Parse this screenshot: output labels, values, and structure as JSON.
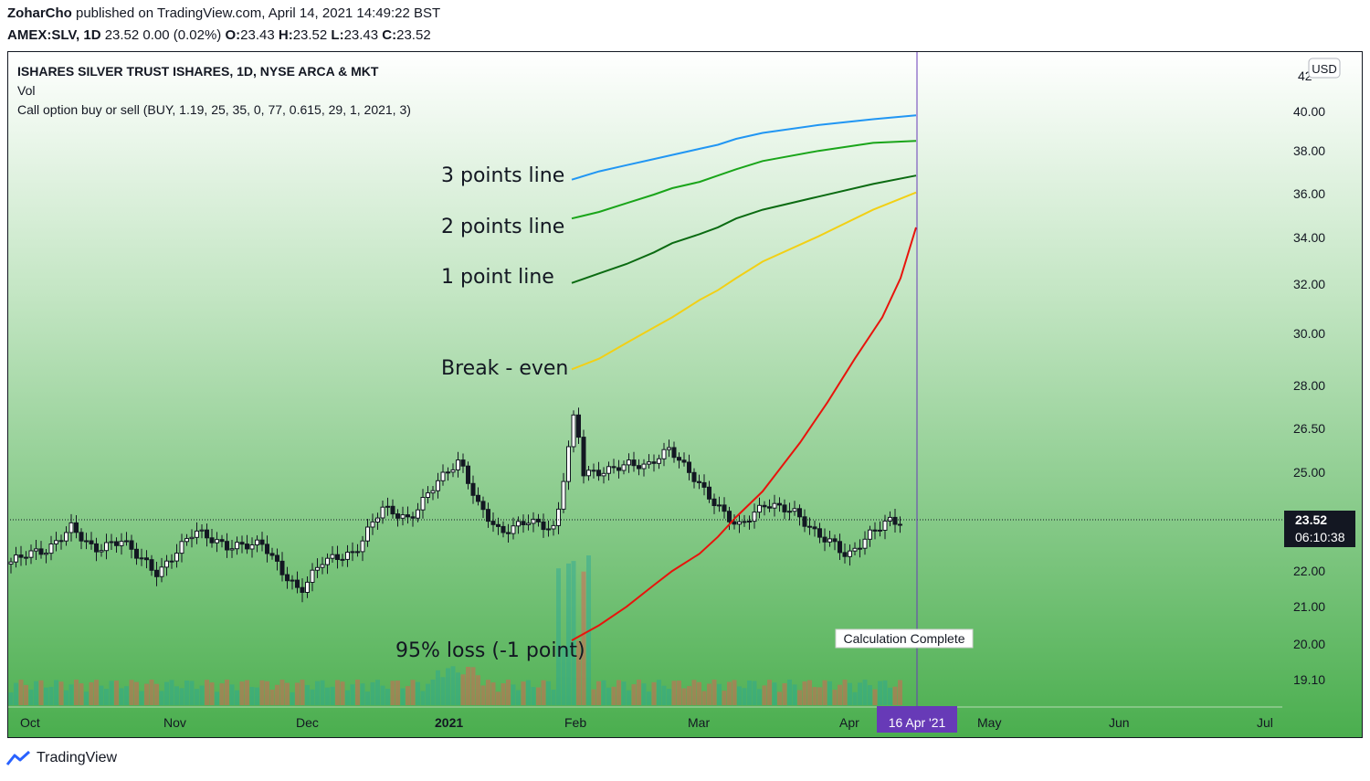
{
  "header": {
    "author": "ZoharCho",
    "published": "published on TradingView.com, April 14, 2021 14:49:22 BST",
    "symbol": "AMEX:SLV, 1D",
    "price_line": "23.52 0.00 (0.02%)",
    "o_label": "O:",
    "o": "23.43",
    "h_label": "H:",
    "h": "23.52",
    "l_label": "L:",
    "l": "23.43",
    "c_label": "C:",
    "c": "23.52"
  },
  "legend": {
    "title": "ISHARES SILVER TRUST ISHARES, 1D, NYSE ARCA & MKT",
    "vol": "Vol",
    "indicator": "Call option buy or sell (BUY, 1.19, 25, 35, 0, 77, 0.615, 29, 1, 2021, 3)"
  },
  "footer": {
    "brand": "TradingView"
  },
  "chart_data": {
    "type": "candlestick",
    "currency": "USD",
    "y_ticks": [
      "40.00",
      "38.00",
      "36.00",
      "34.00",
      "32.00",
      "30.00",
      "28.00",
      "26.50",
      "25.00",
      "22.00",
      "21.00",
      "20.00",
      "19.10"
    ],
    "y_partial_top": "42",
    "x_ticks": [
      "Oct",
      "Nov",
      "Dec",
      "2021",
      "Feb",
      "Mar",
      "Apr",
      "May",
      "Jun",
      "Jul"
    ],
    "last_price": "23.52",
    "countdown": "06:10:38",
    "date_marker": "16 Apr '21",
    "status_label": "Calculation Complete",
    "annotations": [
      "3 points line",
      "2 points line",
      "1 point line",
      "Break - even",
      "95% loss (-1 point)"
    ],
    "colors": {
      "bg_top": "#ffffff",
      "bg_bottom": "#4caf50",
      "line_3pt": "#2196f3",
      "line_2pt": "#1aa51a",
      "line_1pt": "#0b6b12",
      "line_breakeven": "#f2d015",
      "line_loss": "#e8140c",
      "candle": "#131722",
      "marker": "#673ab7",
      "vol_up": "#26a69a",
      "vol_down": "#ef5350"
    },
    "series": [
      {
        "name": "3 points line",
        "x": [
          0,
          30,
          60,
          90,
          110,
          140,
          160,
          180,
          209,
          270,
          330,
          377
        ],
        "y": [
          36.6,
          37.0,
          37.3,
          37.6,
          37.8,
          38.1,
          38.3,
          38.6,
          38.9,
          39.3,
          39.6,
          39.8
        ]
      },
      {
        "name": "2 points line",
        "x": [
          0,
          30,
          60,
          90,
          110,
          140,
          160,
          180,
          209,
          270,
          330,
          377
        ],
        "y": [
          34.8,
          35.1,
          35.5,
          35.9,
          36.2,
          36.5,
          36.8,
          37.1,
          37.5,
          38.0,
          38.4,
          38.5
        ]
      },
      {
        "name": "1 point line",
        "x": [
          0,
          30,
          60,
          90,
          110,
          140,
          160,
          180,
          209,
          270,
          330,
          377
        ],
        "y": [
          32.0,
          32.4,
          32.8,
          33.3,
          33.7,
          34.1,
          34.4,
          34.8,
          35.2,
          35.8,
          36.4,
          36.8
        ]
      },
      {
        "name": "Break - even",
        "x": [
          0,
          30,
          60,
          90,
          110,
          140,
          160,
          180,
          209,
          270,
          330,
          377
        ],
        "y": [
          28.6,
          29.0,
          29.6,
          30.2,
          30.6,
          31.3,
          31.7,
          32.2,
          32.9,
          34.0,
          35.2,
          36.0
        ]
      },
      {
        "name": "95% loss (-1 point)",
        "x": [
          0,
          30,
          60,
          90,
          110,
          140,
          160,
          180,
          209,
          250,
          280,
          310,
          340,
          360,
          377
        ],
        "y": [
          20.1,
          20.5,
          21.0,
          21.6,
          22.0,
          22.5,
          23.0,
          23.6,
          24.4,
          26.0,
          27.4,
          29.0,
          30.6,
          32.2,
          34.4
        ]
      }
    ]
  }
}
